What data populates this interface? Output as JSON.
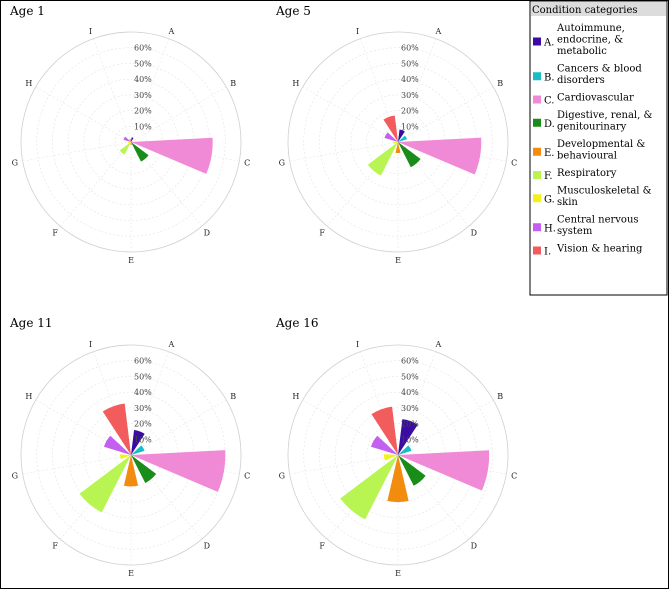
{
  "chart_data": [
    {
      "type": "polar-bar",
      "title": "Age 1",
      "categories": [
        "A",
        "B",
        "C",
        "D",
        "E",
        "F",
        "G",
        "H",
        "I"
      ],
      "values": [
        3,
        1,
        52,
        14,
        2,
        9,
        2,
        5,
        2
      ],
      "rlim": [
        0,
        60
      ],
      "rticks": [
        "10%",
        "20%",
        "30%",
        "40%",
        "50%",
        "60%"
      ]
    },
    {
      "type": "polar-bar",
      "title": "Age 5",
      "categories": [
        "A",
        "B",
        "C",
        "D",
        "E",
        "F",
        "G",
        "H",
        "I"
      ],
      "values": [
        8,
        6,
        53,
        18,
        7,
        24,
        3,
        9,
        17
      ],
      "rlim": [
        0,
        60
      ],
      "rticks": [
        "10%",
        "20%",
        "30%",
        "40%",
        "50%",
        "60%"
      ]
    },
    {
      "type": "polar-bar",
      "title": "Age 11",
      "categories": [
        "A",
        "B",
        "C",
        "D",
        "E",
        "F",
        "G",
        "H",
        "I"
      ],
      "values": [
        16,
        9,
        60,
        20,
        20,
        41,
        7,
        18,
        33
      ],
      "rlim": [
        0,
        60
      ],
      "rticks": [
        "10%",
        "20%",
        "30%",
        "40%",
        "50%",
        "60%"
      ]
    },
    {
      "type": "polar-bar",
      "title": "Age 16",
      "categories": [
        "A",
        "B",
        "C",
        "D",
        "E",
        "F",
        "G",
        "H",
        "I"
      ],
      "values": [
        23,
        9,
        58,
        22,
        30,
        46,
        9,
        18,
        31
      ],
      "rlim": [
        0,
        60
      ],
      "rticks": [
        "10%",
        "20%",
        "30%",
        "40%",
        "50%",
        "60%"
      ]
    }
  ],
  "legend": {
    "title": "Condition categories",
    "items": [
      {
        "key": "A.",
        "lines": [
          "Autoimmune,",
          "endocrine, &",
          "metabolic"
        ],
        "color": "#3a0ca3"
      },
      {
        "key": "B.",
        "lines": [
          "Cancers & blood",
          "disorders"
        ],
        "color": "#17bfc4"
      },
      {
        "key": "C.",
        "lines": [
          "Cardiovascular"
        ],
        "color": "#f08ad6"
      },
      {
        "key": "D.",
        "lines": [
          "Digestive, renal, &",
          "genitourinary"
        ],
        "color": "#1a8c1a"
      },
      {
        "key": "E.",
        "lines": [
          "Developmental &",
          "behavioural"
        ],
        "color": "#f28c0f"
      },
      {
        "key": "F.",
        "lines": [
          "Respiratory"
        ],
        "color": "#b8f553"
      },
      {
        "key": "G.",
        "lines": [
          "Musculoskeletal &",
          "skin"
        ],
        "color": "#f2f21a"
      },
      {
        "key": "H.",
        "lines": [
          "Central nervous",
          "system"
        ],
        "color": "#c460f0"
      },
      {
        "key": "I.",
        "lines": [
          "Vision & hearing"
        ],
        "color": "#f25c5c"
      }
    ]
  }
}
